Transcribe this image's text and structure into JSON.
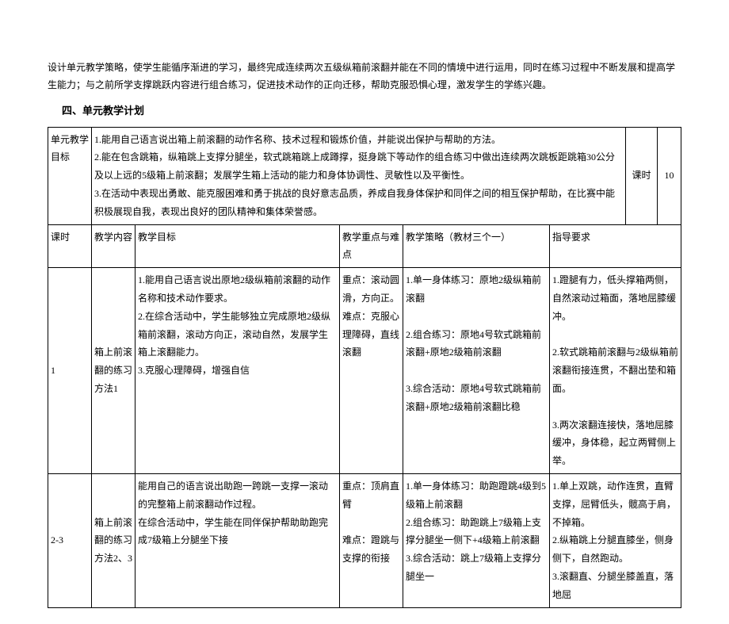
{
  "intro": {
    "line1": "设计单元教学策略，使学生能循序渐进的学习，最终完成连续两次五级纵箱前滚翻并能在不同的情境中进行运用，同时在练习过程中不断发展和提高学",
    "line2": "生能力；与之前所学支撑跳跃内容进行组合练习，促进技术动作的正向迁移，帮助克服恐惧心理，激发学生的学练兴趣。"
  },
  "section_heading": "四、单元教学计划",
  "table": {
    "unit_goals_label": "单元教学目标",
    "unit_goals_text": "1.能用自己语言说出箱上前滚翻的动作名称、技术过程和锻炼价值，并能说出保护与帮助的方法。\n2.能在包含跳箱，纵箱跳上支撑分腿坐，软式跳箱跳上成蹲撑，挺身跳下等动作的组合练习中做出连续两次跳板距跳箱30公分及以上远的5级箱上前滚翻；发展学生箱上活动的能力和身体协调性、灵敏性以及平衡性。\n3.在活动中表现出勇敢、能克服困难和勇于挑战的良好意志品质，养成自我身体保护和同伴之间的相互保护帮助，在比赛中能积极展现自我，表现出良好的团队精神和集体荣誉感。",
    "keshi_label": "课时",
    "keshi_value": "10",
    "header": {
      "col1": "课时",
      "col2": "教学内容",
      "col3": "教学目标",
      "col4": "教学重点与难点",
      "col5": "教学策略（教材三个一）",
      "col6": "指导要求"
    },
    "row1": {
      "keshi": "1",
      "content": "箱上前滚翻的练习方法1",
      "goals": "1.能用自己语言说出原地2级纵箱前滚翻的动作名称和技术动作要求。\n2.在综合活动中，学生能够独立完成原地2级纵箱前滚翻，滚动方向正，滚动自然，发展学生箱上滚翻能力。\n3.克服心理障碍，增强自信",
      "focus": "重点：滚动圆滑，方向正。\n难点：克服心理障碍，直线滚翻",
      "strategy": "1.单一身体练习：原地2级纵箱前滚翻\n\n2.组合练习：原地4号软式跳箱前滚翻+原地2级箱前滚翻\n\n3.综合活动：原地4号软式跳箱前滚翻+原地2级箱前滚翻比稳",
      "guidance": "1.蹬腿有力，低头撑箱两侧，自然滚动过箱面，落地屈膝缓冲。\n\n2.软式跳箱前滚翻与2级纵箱前滚翻衔接连贯，不翻出垫和箱面。\n\n3.两次滚翻连接快，落地屈膝缓冲，身体稳，起立两臂侧上举。"
    },
    "row2": {
      "keshi": "2-3",
      "content": "箱上前滚翻的练习方法2、3",
      "goals": "能用自己的语言说出助跑一跨跳一支撑一滚动的完整箱上前滚翻动作过程。\n在综合活动中，学生能在同伴保护帮助助跑完成7级箱上分腿坐下接",
      "focus": "重点：顶肩直臂\n\n难点：蹬跳与支撑的衔接",
      "strategy": "1.单一身体练习：助跑蹬跳4级到5级箱上前滚翻\n2.组合练习：助跑跳上7级箱上支撑分腿坐一侧下+4级箱上前滚翻\n3.综合活动：跳上7级箱上支撑分腿坐一",
      "guidance": "1.单上双跳，动作连贯，直臂支撑，屈臂低头，髋高于肩，不掉箱。\n2.纵箱跳上分腿直膝坐，侧身侧下，自然跑动。\n3.滚翻直、分腿坐膝盖直，落地屈"
    }
  }
}
